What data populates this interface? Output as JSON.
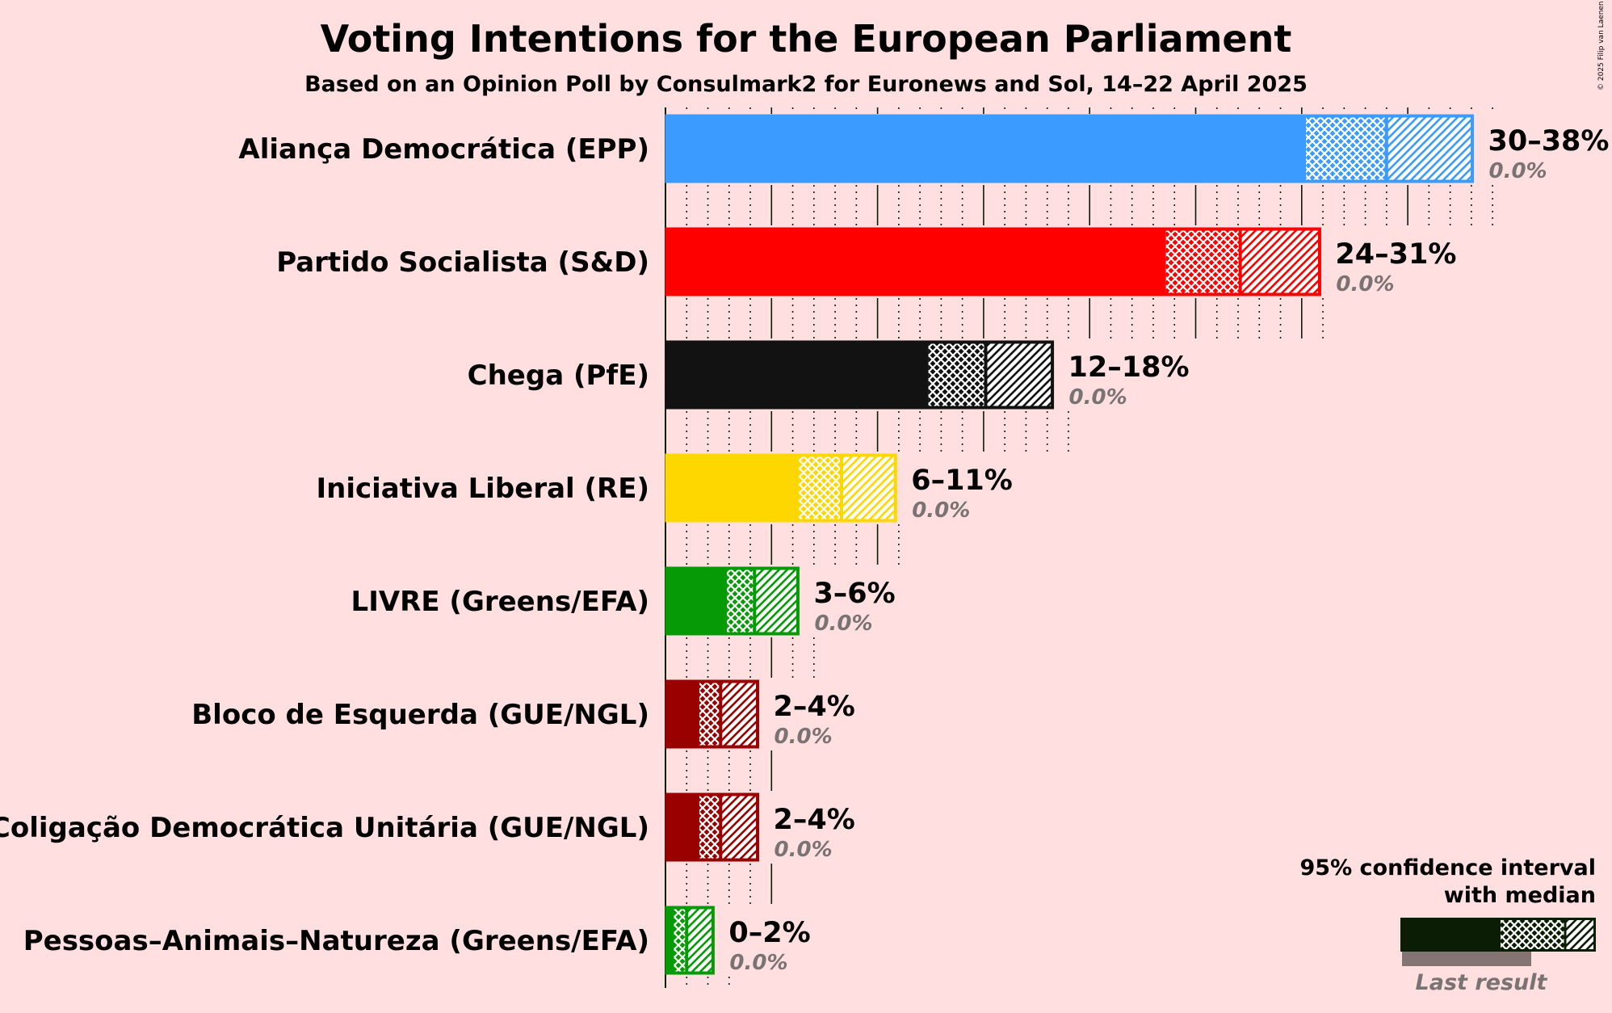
{
  "chart_data": {
    "type": "bar",
    "orientation": "horizontal",
    "title": "Voting Intentions for the European Parliament",
    "subtitle": "Based on an Opinion Poll by Consulmark2 for Euronews and Sol, 14–22 April 2025",
    "unit": "%",
    "xlim": [
      0,
      38
    ],
    "grid": true,
    "legend_position": "bottom-right",
    "legend_title": "95% confidence interval with median",
    "legend_title_lines": [
      "95% confidence interval",
      "with median"
    ],
    "legend_last_result": "Last result",
    "legend_color": "#0c1d06",
    "legend_last_color": "#857474",
    "copyright": "© 2025 Filip van Laenen",
    "series": [
      {
        "party": "Aliança Democrática (EPP)",
        "color": "#3c9bfe",
        "low": 30.2,
        "median": 34.0,
        "high": 38.1,
        "range_label": "30–38%",
        "last_result_label": "0.0%",
        "last_result": 0.0
      },
      {
        "party": "Partido Socialista (S&D)",
        "color": "#ff0000",
        "low": 23.6,
        "median": 27.1,
        "high": 30.9,
        "range_label": "24–31%",
        "last_result_label": "0.0%",
        "last_result": 0.0
      },
      {
        "party": "Chega (PfE)",
        "color": "#121212",
        "low": 12.4,
        "median": 15.1,
        "high": 18.3,
        "range_label": "12–18%",
        "last_result_label": "0.0%",
        "last_result": 0.0
      },
      {
        "party": "Iniciativa Liberal (RE)",
        "color": "#ffd700",
        "low": 6.3,
        "median": 8.3,
        "high": 10.9,
        "range_label": "6–11%",
        "last_result_label": "0.0%",
        "last_result": 0.0
      },
      {
        "party": "LIVRE (Greens/EFA)",
        "color": "#069a06",
        "low": 2.9,
        "median": 4.2,
        "high": 6.3,
        "range_label": "3–6%",
        "last_result_label": "0.0%",
        "last_result": 0.0
      },
      {
        "party": "Bloco de Esquerda (GUE/NGL)",
        "color": "#990000",
        "low": 1.6,
        "median": 2.6,
        "high": 4.4,
        "range_label": "2–4%",
        "last_result_label": "0.0%",
        "last_result": 0.0
      },
      {
        "party": "Coligação Democrática Unitária (GUE/NGL)",
        "color": "#990000",
        "low": 1.6,
        "median": 2.6,
        "high": 4.4,
        "range_label": "2–4%",
        "last_result_label": "0.0%",
        "last_result": 0.0
      },
      {
        "party": "Pessoas–Animais–Natureza (Greens/EFA)",
        "color": "#069a06",
        "low": 0.4,
        "median": 1.0,
        "high": 2.3,
        "range_label": "0–2%",
        "last_result_label": "0.0%",
        "last_result": 0.0
      }
    ]
  }
}
